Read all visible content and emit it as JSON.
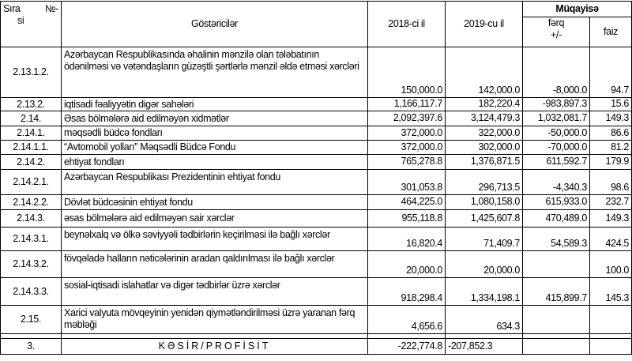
{
  "header": {
    "sira": "Sıra",
    "no": "№-",
    "si": "si",
    "gostericiler": "Göstəricilər",
    "y2018": "2018-ci il",
    "y2019": "2019-cu il",
    "muqayise": "Müqayisə",
    "ferq": "fərq",
    "ferq_sign": "+/-",
    "faiz": "faiz"
  },
  "rows": [
    {
      "code": "2.13.1.2.",
      "label": "Azərbaycan Respublikasında əhalinin mənzilə olan tələbatının ödənilməsi və vətəndaşların güzəştli şərtlərlə mənzil əldə etməsi xərcləri",
      "v2018": "150,000.0",
      "v2019": "142,000.0",
      "diff": "-8,000.0",
      "pct": "94.7"
    },
    {
      "code": "2.13.2.",
      "label": "iqtisadi fəaliyyətin digər sahələri",
      "v2018": "1,166,117.7",
      "v2019": "182,220.4",
      "diff": "-983,897.3",
      "pct": "15.6"
    },
    {
      "code": "2.14.",
      "label": "Əsas bölmələrə aid edilməyən xidmətlər",
      "v2018": "2,092,397.6",
      "v2019": "3,124,479.3",
      "diff": "1,032,081.7",
      "pct": "149.3"
    },
    {
      "code": "2.14.1.",
      "label": "məqsədli büdcə fondları",
      "v2018": "372,000.0",
      "v2019": "322,000.0",
      "diff": "-50,000.0",
      "pct": "86.6"
    },
    {
      "code": "2.14.1.1.",
      "label": "“Avtomobil yolları” Məqsədli Büdcə Fondu",
      "v2018": "372,000.0",
      "v2019": "302,000.0",
      "diff": "-70,000.0",
      "pct": "81.2"
    },
    {
      "code": "2.14.2.",
      "label": "ehtiyat fondları",
      "v2018": "765,278.8",
      "v2019": "1,376,871.5",
      "diff": "611,592.7",
      "pct": "179.9"
    },
    {
      "code": "2.14.2.1.",
      "label": "Azərbaycan Respublikası Prezidentinin ehtiyat fondu",
      "v2018": "301,053.8",
      "v2019": "296,713.5",
      "diff": "-4,340.3",
      "pct": "98.6"
    },
    {
      "code": "2.14.2.2.",
      "label": "Dövlət büdcəsinin ehtiyat fondu",
      "v2018": "464,225.0",
      "v2019": "1,080,158.0",
      "diff": "615,933.0",
      "pct": "232.7"
    },
    {
      "code": "2.14.3.",
      "label": "əsas bölmələrə aid edilməyən sair xərclər",
      "v2018": "955,118.8",
      "v2019": "1,425,607.8",
      "diff": "470,489.0",
      "pct": "149.3"
    },
    {
      "code": "2.14.3.1.",
      "label": "beynəlxalq və ölkə səviyyəli tədbirlərin keçirilməsi ilə bağlı xərclər",
      "v2018": "16,820.4",
      "v2019": "71,409.7",
      "diff": "54,589.3",
      "pct": "424.5"
    },
    {
      "code": "2.14.3.2.",
      "label": "fövqəladə halların nəticələrinin aradan qaldırılması ilə bağlı xərclər",
      "v2018": "20,000.0",
      "v2019": "20,000.0",
      "diff": "",
      "pct": "100.0"
    },
    {
      "code": "2.14.3.3.",
      "label": "sosial-iqtisadi islahatlar və digər tədbirlər üzrə xərclər",
      "v2018": "918,298.4",
      "v2019": "1,334,198.1",
      "diff": "415,899.7",
      "pct": "145.3"
    },
    {
      "code": "2.15.",
      "label": "Xarici valyuta mövqeyinin yenidən qiymətləndirilməsi üzrə yaranan fərq məbləği",
      "v2018": "4,656.6",
      "v2019": "634.3",
      "diff": "",
      "pct": ""
    }
  ],
  "total": {
    "code": "3.",
    "label": "KƏSİR/PROFİSİT",
    "v2018": "-222,774.8",
    "v2019": "-207,852.3",
    "diff": "",
    "pct": ""
  }
}
